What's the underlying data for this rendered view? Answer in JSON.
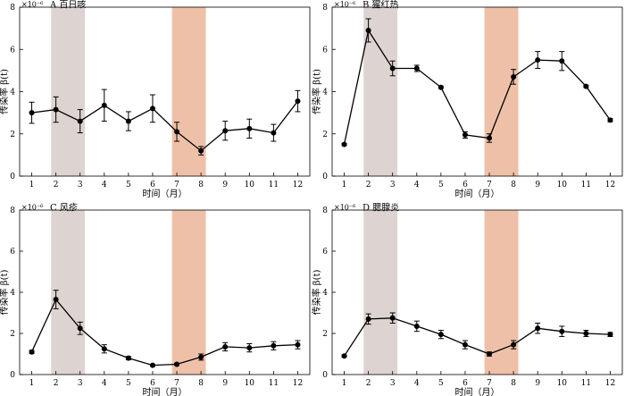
{
  "chart_data": [
    {
      "type": "line",
      "panel": "A",
      "title": "A 百日咳",
      "ylabel": "传染率 β(t)",
      "xlabel": "时间（月）",
      "y_multiplier": "×10⁻⁶",
      "x": [
        1,
        2,
        3,
        4,
        5,
        6,
        7,
        8,
        9,
        10,
        11,
        12
      ],
      "xlim": [
        0.5,
        12.5
      ],
      "ylim": [
        0,
        8
      ],
      "yticks": [
        0,
        2,
        4,
        6,
        8
      ],
      "values": [
        3.0,
        3.15,
        2.6,
        3.35,
        2.6,
        3.2,
        2.1,
        1.2,
        2.15,
        2.25,
        2.05,
        3.55
      ],
      "errors": [
        0.5,
        0.6,
        0.55,
        0.75,
        0.45,
        0.65,
        0.45,
        0.2,
        0.45,
        0.45,
        0.4,
        0.5
      ],
      "shaded_bands": [
        {
          "from": 1.8,
          "to": 3.2,
          "color": "#ddd4d2"
        },
        {
          "from": 6.8,
          "to": 8.2,
          "color": "#efc0a8"
        }
      ],
      "grid": false
    },
    {
      "type": "line",
      "panel": "B",
      "title": "B 猩红热",
      "ylabel": "传染率 β(t)",
      "xlabel": "时间（月）",
      "y_multiplier": "×10⁻⁶",
      "x": [
        1,
        2,
        3,
        4,
        5,
        6,
        7,
        8,
        9,
        10,
        11,
        12
      ],
      "xlim": [
        0.5,
        12.5
      ],
      "ylim": [
        0,
        8
      ],
      "yticks": [
        0,
        2,
        4,
        6,
        8
      ],
      "values": [
        1.5,
        6.9,
        5.1,
        5.1,
        4.2,
        1.95,
        1.8,
        4.7,
        5.5,
        5.45,
        4.25,
        2.65
      ],
      "errors": [
        0.05,
        0.55,
        0.35,
        0.15,
        0.05,
        0.15,
        0.2,
        0.35,
        0.4,
        0.45,
        0.05,
        0.08
      ],
      "shaded_bands": [
        {
          "from": 1.8,
          "to": 3.2,
          "color": "#ddd4d2"
        },
        {
          "from": 6.8,
          "to": 8.2,
          "color": "#efc0a8"
        }
      ],
      "grid": false
    },
    {
      "type": "line",
      "panel": "C",
      "title": "C 风疹",
      "ylabel": "传染率 β(t)",
      "xlabel": "时间（月）",
      "y_multiplier": "×10⁻⁶",
      "x": [
        1,
        2,
        3,
        4,
        5,
        6,
        7,
        8,
        9,
        10,
        11,
        12
      ],
      "xlim": [
        0.5,
        12.5
      ],
      "ylim": [
        0,
        8
      ],
      "yticks": [
        0,
        2,
        4,
        6,
        8
      ],
      "values": [
        1.1,
        3.65,
        2.25,
        1.25,
        0.8,
        0.45,
        0.5,
        0.85,
        1.35,
        1.3,
        1.4,
        1.45
      ],
      "errors": [
        0.08,
        0.45,
        0.3,
        0.2,
        0.08,
        0.05,
        0.05,
        0.15,
        0.2,
        0.2,
        0.2,
        0.2
      ],
      "shaded_bands": [
        {
          "from": 1.8,
          "to": 3.2,
          "color": "#ddd4d2"
        },
        {
          "from": 6.8,
          "to": 8.2,
          "color": "#efc0a8"
        }
      ],
      "grid": false
    },
    {
      "type": "line",
      "panel": "D",
      "title": "D 腮腺炎",
      "ylabel": "传染率 β(t)",
      "xlabel": "时间（月）",
      "y_multiplier": "×10⁻⁶",
      "x": [
        1,
        2,
        3,
        4,
        5,
        6,
        7,
        8,
        9,
        10,
        11,
        12
      ],
      "xlim": [
        0.5,
        12.5
      ],
      "ylim": [
        0,
        8
      ],
      "yticks": [
        0,
        2,
        4,
        6,
        8
      ],
      "values": [
        0.9,
        2.7,
        2.75,
        2.35,
        1.95,
        1.45,
        1.0,
        1.45,
        2.25,
        2.1,
        2.0,
        1.95
      ],
      "errors": [
        0.05,
        0.25,
        0.25,
        0.25,
        0.2,
        0.2,
        0.1,
        0.2,
        0.25,
        0.25,
        0.15,
        0.1
      ],
      "shaded_bands": [
        {
          "from": 1.8,
          "to": 3.2,
          "color": "#ddd4d2"
        },
        {
          "from": 6.8,
          "to": 8.2,
          "color": "#efc0a8"
        }
      ],
      "grid": false
    }
  ]
}
